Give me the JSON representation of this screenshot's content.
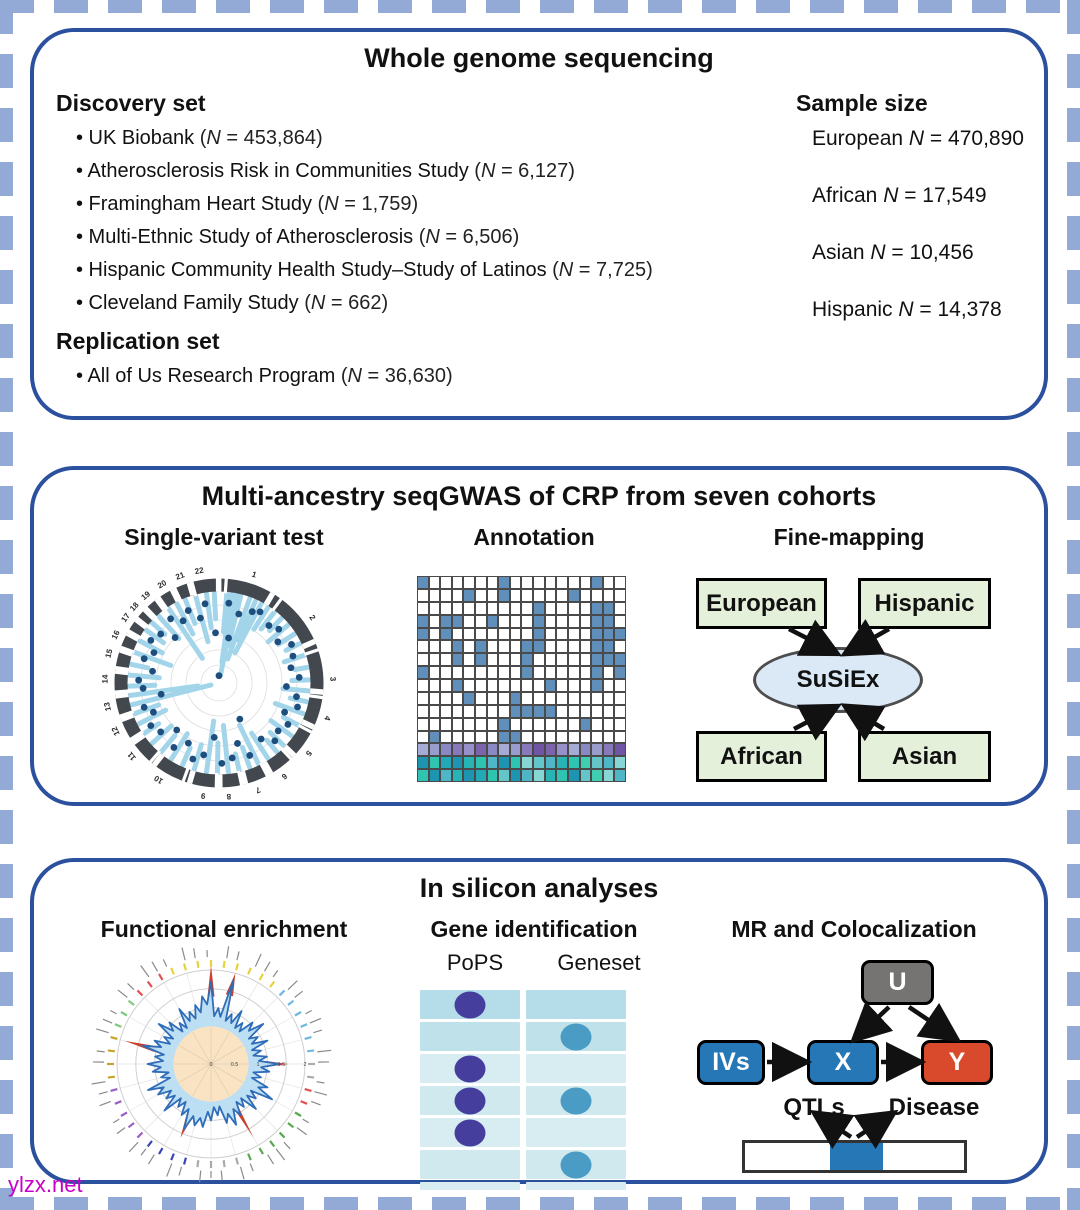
{
  "frame": {
    "dash_color": "#93a9d6",
    "panel_border_color": "#2b509e"
  },
  "watermark": "ylzx.net",
  "wgs": {
    "title": "Whole genome sequencing",
    "bullet": "•",
    "n_var": "N",
    "discovery_heading": "Discovery set",
    "discovery_items": [
      {
        "name": "UK Biobank",
        "n": "453,864"
      },
      {
        "name": "Atherosclerosis Risk in Communities Study",
        "n": "6,127"
      },
      {
        "name": "Framingham Heart Study",
        "n": "1,759"
      },
      {
        "name": "Multi-Ethnic Study of Atherosclerosis",
        "n": "6,506"
      },
      {
        "name": "Hispanic Community Health Study–Study of Latinos",
        "n": "7,725"
      },
      {
        "name": "Cleveland Family Study",
        "n": "662"
      }
    ],
    "replication_heading": "Replication set",
    "replication_items": [
      {
        "name": "All of Us Research Program",
        "n": "36,630"
      }
    ],
    "sample_heading": "Sample size",
    "sample_items": [
      {
        "group": "European",
        "n": "470,890"
      },
      {
        "group": "African",
        "n": "17,549"
      },
      {
        "group": "Asian",
        "n": "10,456"
      },
      {
        "group": "Hispanic",
        "n": "14,378"
      }
    ]
  },
  "gwas": {
    "title": "Multi-ancestry seqGWAS of CRP from seven cohorts",
    "col1": "Single-variant test",
    "col2": "Annotation",
    "col3": "Fine-mapping",
    "manhattan": {
      "type": "circular-manhattan",
      "chromosomes": [
        "1",
        "2",
        "3",
        "4",
        "5",
        "6",
        "7",
        "8",
        "9",
        "10",
        "11",
        "12",
        "13",
        "14",
        "15",
        "16",
        "17",
        "18",
        "19",
        "20",
        "21",
        "22"
      ],
      "label_angles": [
        18,
        55,
        88,
        108,
        128,
        145,
        160,
        175,
        188,
        212,
        230,
        245,
        258,
        272,
        285,
        295,
        305,
        312,
        320,
        330,
        340,
        350
      ],
      "ring_color": "#43474e",
      "spike_color": "#a3d5ea",
      "dot_color": "#1d4e7e",
      "grid_color": "#dddddd",
      "spikes": [
        [
          5,
          0.45
        ],
        [
          8,
          0.8
        ],
        [
          11,
          0.95
        ],
        [
          14,
          0.6
        ],
        [
          20,
          0.75
        ],
        [
          24,
          0.5
        ],
        [
          28,
          0.65
        ],
        [
          33,
          0.3
        ],
        [
          38,
          0.25
        ],
        [
          44,
          0.2
        ],
        [
          50,
          0.3
        ],
        [
          57,
          0.22
        ],
        [
          64,
          0.18
        ],
        [
          72,
          0.25
        ],
        [
          80,
          0.15
        ],
        [
          88,
          0.2
        ],
        [
          95,
          0.3
        ],
        [
          102,
          0.2
        ],
        [
          110,
          0.35
        ],
        [
          118,
          0.2
        ],
        [
          126,
          0.3
        ],
        [
          134,
          0.22
        ],
        [
          140,
          0.18
        ],
        [
          147,
          0.35
        ],
        [
          154,
          0.5
        ],
        [
          160,
          0.25
        ],
        [
          167,
          0.2
        ],
        [
          174,
          0.55
        ],
        [
          181,
          0.35
        ],
        [
          188,
          0.6
        ],
        [
          196,
          0.3
        ],
        [
          204,
          0.22
        ],
        [
          212,
          0.35
        ],
        [
          220,
          0.25
        ],
        [
          228,
          0.3
        ],
        [
          236,
          0.2
        ],
        [
          243,
          0.35
        ],
        [
          250,
          0.3
        ],
        [
          256,
          0.95
        ],
        [
          262,
          0.8
        ],
        [
          268,
          0.3
        ],
        [
          275,
          0.35
        ],
        [
          282,
          0.2
        ],
        [
          290,
          0.45
        ],
        [
          298,
          0.3
        ],
        [
          306,
          0.25
        ],
        [
          312,
          0.2
        ],
        [
          318,
          0.35
        ],
        [
          326,
          0.7
        ],
        [
          332,
          0.4
        ],
        [
          338,
          0.3
        ],
        [
          345,
          0.55
        ],
        [
          352,
          0.4
        ],
        [
          357,
          0.3
        ]
      ],
      "dots": [
        [
          7,
          0.1
        ],
        [
          12,
          0.5
        ],
        [
          16,
          0.2
        ],
        [
          25,
          0.12
        ],
        [
          30,
          0.08
        ],
        [
          41,
          0.15
        ],
        [
          48,
          0.1
        ],
        [
          55,
          0.2
        ],
        [
          62,
          0.08
        ],
        [
          70,
          0.12
        ],
        [
          78,
          0.18
        ],
        [
          86,
          0.1
        ],
        [
          93,
          0.25
        ],
        [
          100,
          0.12
        ],
        [
          107,
          0.08
        ],
        [
          114,
          0.2
        ],
        [
          121,
          0.1
        ],
        [
          129,
          0.15
        ],
        [
          136,
          0.1
        ],
        [
          143,
          0.22
        ],
        [
          150,
          0.55
        ],
        [
          157,
          0.12
        ],
        [
          163,
          0.3
        ],
        [
          170,
          0.15
        ],
        [
          178,
          0.1
        ],
        [
          185,
          0.4
        ],
        [
          192,
          0.18
        ],
        [
          199,
          0.1
        ],
        [
          207,
          0.25
        ],
        [
          215,
          0.12
        ],
        [
          222,
          0.3
        ],
        [
          230,
          0.15
        ],
        [
          238,
          0.1
        ],
        [
          246,
          0.2
        ],
        [
          252,
          0.12
        ],
        [
          259,
          0.35
        ],
        [
          266,
          0.15
        ],
        [
          272,
          0.1
        ],
        [
          280,
          0.25
        ],
        [
          288,
          0.12
        ],
        [
          295,
          0.2
        ],
        [
          302,
          0.1
        ],
        [
          310,
          0.15
        ],
        [
          316,
          0.3
        ],
        [
          323,
          0.1
        ],
        [
          330,
          0.2
        ],
        [
          337,
          0.12
        ],
        [
          344,
          0.25
        ],
        [
          350,
          0.1
        ],
        [
          356,
          0.45
        ],
        [
          0,
          0.95
        ]
      ]
    },
    "annotation": {
      "type": "heatmap",
      "cols": 18,
      "on_color": "#5f8fba",
      "off_color": "#ffffff",
      "grid": [
        "100000010000000100",
        "000010010000010000",
        "000000000010000110",
        "101100100010000110",
        "101000000010000111",
        "000101000110000110",
        "000101000100000111",
        "100000000100000101",
        "000100000001000100",
        "000010001000000000",
        "000000001111000000",
        "000000010000001000",
        "010000011000000000"
      ],
      "purple_row": [
        "#a6abd6",
        "#989dcd",
        "#8b89c4",
        "#8878bc",
        "#9890ca",
        "#7c64ad",
        "#8b89c4",
        "#a6abd6",
        "#989dcd",
        "#8878bc",
        "#6f55a4",
        "#7c64ad",
        "#9890ca",
        "#a6abd6",
        "#8b89c4",
        "#989dcd",
        "#8878bc",
        "#6f55a4"
      ],
      "teal_rows": [
        [
          "#1d95b0",
          "#2fc4b2",
          "#23a8b8",
          "#1d95b0",
          "#27b4b4",
          "#2fc4b2",
          "#4fb6c8",
          "#1d95b0",
          "#2fc4b2",
          "#85d6d4",
          "#65c6ca",
          "#4fb6c8",
          "#27b4b4",
          "#2fc4b2",
          "#3fceb0",
          "#65c6ca",
          "#4fb6c8",
          "#85d6d4"
        ],
        [
          "#2fc4b2",
          "#1d95b0",
          "#4fb6c8",
          "#27b4b4",
          "#1d95b0",
          "#23a8b8",
          "#2fc4b2",
          "#65c6ca",
          "#1d95b0",
          "#4fb6c8",
          "#85d6d4",
          "#27b4b4",
          "#2fc4b2",
          "#1d95b0",
          "#65c6ca",
          "#3fceb0",
          "#85d6d4",
          "#4fb6c8"
        ]
      ]
    },
    "fine_mapping": {
      "box_top_left": "European",
      "box_top_right": "Hispanic",
      "box_bottom_left": "African",
      "box_bottom_right": "Asian",
      "center": "SuSiEx",
      "box_fill": "#e4f0da",
      "ellipse_fill": "#dbe8f6"
    }
  },
  "insilico": {
    "title": "In silicon analyses",
    "col1": "Functional enrichment",
    "col2": "Gene identification",
    "col3": "MR and Colocalization",
    "radar": {
      "type": "radar",
      "axis_ticks": [
        "0",
        "0.5",
        "1",
        "1.5",
        "2"
      ],
      "inner_fill": "#f9e3c3",
      "band_fill": "#b9ddf3",
      "band_edge": "#2f6db8",
      "red_color": "#c8402e",
      "sectors": 48,
      "blue_values": [
        1.75,
        1.2,
        1.85,
        1.15,
        1.3,
        1.1,
        1.25,
        1.4,
        1.15,
        1.3,
        1.1,
        1.2,
        1.45,
        1.25,
        1.1,
        1.3,
        1.5,
        1.2,
        1.35,
        1.15,
        1.25,
        1.4,
        1.3,
        1.1,
        1.2,
        1.35,
        1.35,
        1.5,
        1.25,
        1.15,
        1.4,
        1.2,
        1.3,
        1.45,
        1.1,
        1.25,
        1.35,
        1.2,
        1.5,
        1.3,
        1.15,
        1.4,
        1.25,
        1.1,
        1.35,
        1.2,
        1.3,
        1.45
      ],
      "red_spikes": [
        [
          0,
          2.1
        ],
        [
          2,
          2.0
        ],
        [
          12,
          1.65
        ],
        [
          20,
          1.8
        ],
        [
          27,
          1.7
        ],
        [
          38,
          1.9
        ]
      ],
      "tick_color_groups": [
        [
          "#e6d23e",
          6
        ],
        [
          "#6fb7e0",
          6
        ],
        [
          "#aaaaaa",
          2
        ],
        [
          "#e05252",
          2
        ],
        [
          "#57a84f",
          6
        ],
        [
          "#aaaaaa",
          4
        ],
        [
          "#3946b8",
          4
        ],
        [
          "#9a5fc9",
          5
        ],
        [
          "#c9a227",
          4
        ],
        [
          "#7fc97f",
          3
        ],
        [
          "#e05252",
          3
        ],
        [
          "#e6d23e",
          3
        ]
      ]
    },
    "gene_id": {
      "col1": "PoPS",
      "col2": "Geneset",
      "row_colors": [
        "#b5dde9",
        "#bfe2ea",
        "#d8edf2",
        "#cfe9ef",
        "#d8edf2",
        "#cfe9ef"
      ],
      "partial_row_color": "#d8edf2",
      "pops_dot_rows": [
        1,
        3,
        4,
        5
      ],
      "geneset_dot_rows": [
        2,
        4,
        6
      ],
      "pops_dot_color": "#453e9d",
      "geneset_dot_color": "#4a9cc5"
    },
    "mr": {
      "u": "U",
      "ivs": "IVs",
      "x": "X",
      "y": "Y",
      "qtls": "QTLs",
      "disease": "Disease",
      "blue": "#2677b5",
      "red": "#d84a2b",
      "gray": "#767472",
      "bar_segment_color": "#2677b5"
    }
  }
}
